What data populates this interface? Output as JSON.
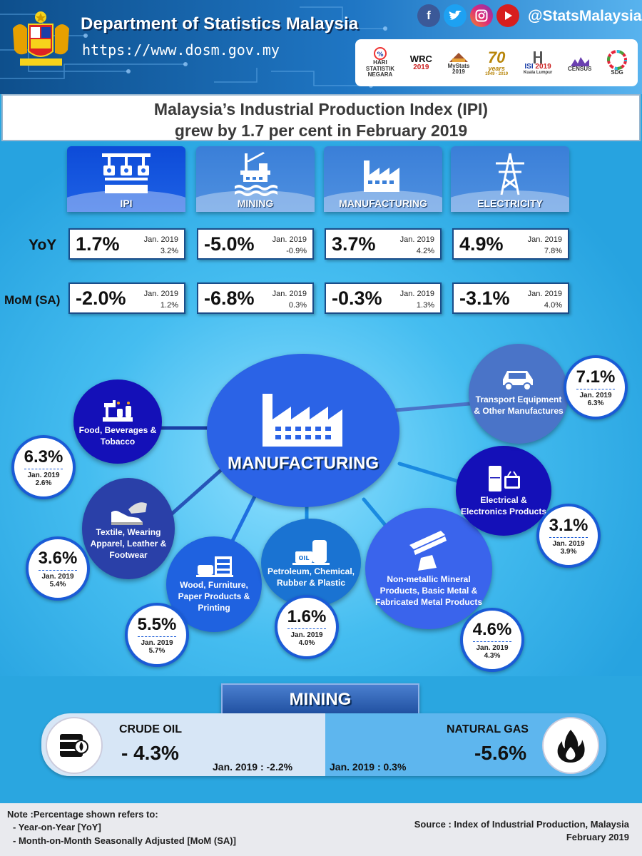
{
  "header": {
    "title": "Department of Statistics Malaysia",
    "url": "https://www.dosm.gov.my",
    "handle": "@StatsMalaysia",
    "social_icons": [
      "facebook-icon",
      "twitter-icon",
      "instagram-icon",
      "youtube-icon"
    ],
    "logos": [
      {
        "line1": "HARI",
        "line2": "STATISTIK",
        "line3": "NEGARA"
      },
      {
        "line1": "WRC",
        "line2": "2019",
        "line3": ""
      },
      {
        "line1": "MyStats",
        "line2": "2019",
        "line3": ""
      },
      {
        "line1": "70",
        "line2": "years",
        "line3": "1949 - 2019"
      },
      {
        "line1": "ISI",
        "line2": "2019",
        "line3": "Kuala Lumpur"
      },
      {
        "line1": "CENSUS",
        "line2": "",
        "line3": ""
      },
      {
        "line1": "SDG",
        "line2": "",
        "line3": ""
      }
    ]
  },
  "title": {
    "line1": "Malaysia’s Industrial Production Index (IPI)",
    "line2": "grew by 1.7 per cent in February 2019"
  },
  "colors": {
    "header_dark": "#0e4f8c",
    "accent_blue": "#1a5bd6",
    "panel_blue": "#2aa6e0",
    "navy_bubble": "#1410b8"
  },
  "categories": [
    {
      "label": "IPI",
      "icon": "robot-arm-icon"
    },
    {
      "label": "MINING",
      "icon": "oil-rig-icon"
    },
    {
      "label": "MANUFACTURING",
      "icon": "factory-icon"
    },
    {
      "label": "ELECTRICITY",
      "icon": "power-tower-icon"
    }
  ],
  "rows": {
    "yoy_label": "YoY",
    "mom_label": "MoM (SA)",
    "yoy": [
      {
        "value": "1.7%",
        "prev_label": "Jan. 2019",
        "prev_value": "3.2%"
      },
      {
        "value": "-5.0%",
        "prev_label": "Jan. 2019",
        "prev_value": "-0.9%"
      },
      {
        "value": "3.7%",
        "prev_label": "Jan. 2019",
        "prev_value": "4.2%"
      },
      {
        "value": "4.9%",
        "prev_label": "Jan. 2019",
        "prev_value": "7.8%"
      }
    ],
    "mom": [
      {
        "value": "-2.0%",
        "prev_label": "Jan. 2019",
        "prev_value": "1.2%"
      },
      {
        "value": "-6.8%",
        "prev_label": "Jan. 2019",
        "prev_value": "0.3%"
      },
      {
        "value": "-0.3%",
        "prev_label": "Jan. 2019",
        "prev_value": "1.3%"
      },
      {
        "value": "-3.1%",
        "prev_label": "Jan. 2019",
        "prev_value": "4.0%"
      }
    ]
  },
  "manufacturing": {
    "label": "MANUFACTURING",
    "subsectors": [
      {
        "name": "Food, Beverages & Tobacco",
        "value": "6.3%",
        "prev_label": "Jan. 2019",
        "prev_value": "2.6%",
        "icon": "food-production-icon"
      },
      {
        "name": "Textile, Wearing Apparel, Leather & Footwear",
        "value": "3.6%",
        "prev_label": "Jan. 2019",
        "prev_value": "5.4%",
        "icon": "textile-icon"
      },
      {
        "name": "Wood, Furniture, Paper Products & Printing",
        "value": "5.5%",
        "prev_label": "Jan. 2019",
        "prev_value": "5.7%",
        "icon": "furniture-icon"
      },
      {
        "name": "Petroleum, Chemical, Rubber & Plastic",
        "value": "1.6%",
        "prev_label": "Jan. 2019",
        "prev_value": "4.0%",
        "icon": "oil-tank-icon"
      },
      {
        "name": "Non-metallic Mineral Products, Basic Metal & Fabricated Metal Products",
        "value": "4.6%",
        "prev_label": "Jan. 2019",
        "prev_value": "4.3%",
        "icon": "metal-beams-icon"
      },
      {
        "name": "Electrical & Electronics Products",
        "value": "3.1%",
        "prev_label": "Jan. 2019",
        "prev_value": "3.9%",
        "icon": "appliances-icon"
      },
      {
        "name": "Transport Equipment & Other Manufactures",
        "value": "7.1%",
        "prev_label": "Jan. 2019",
        "prev_value": "6.3%",
        "icon": "car-icon"
      }
    ]
  },
  "mining": {
    "label": "MINING",
    "crude_oil": {
      "title": "CRUDE OIL",
      "value": "- 4.3%",
      "prev": "Jan. 2019 : -2.2%",
      "icon": "oil-barrel-icon"
    },
    "natural_gas": {
      "title": "NATURAL GAS",
      "value": "-5.6%",
      "prev": "Jan. 2019 : 0.3%",
      "icon": "flame-icon"
    }
  },
  "footer": {
    "note_title": "Note :Percentage shown refers to:",
    "note_items": [
      "- Year-on-Year [YoY]",
      "- Month-on-Month Seasonally Adjusted [MoM (SA)]"
    ],
    "source_line1": "Source : Index of Industrial Production, Malaysia",
    "source_line2": "February 2019"
  }
}
